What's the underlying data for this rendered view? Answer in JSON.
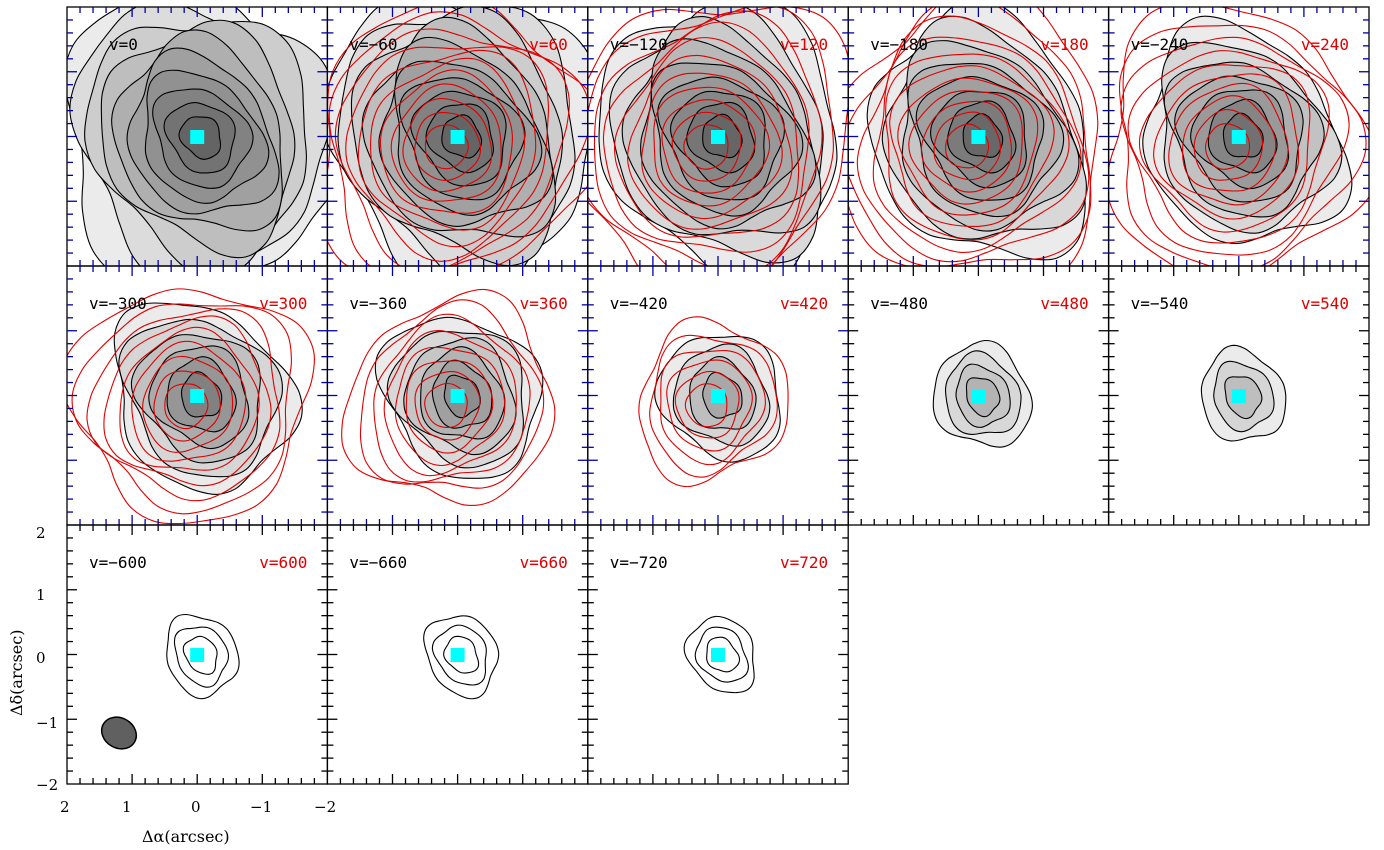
{
  "colors": {
    "frame": "#000000",
    "frame_blue": "#0000aa",
    "blue_contour": "#e00000",
    "red_label": "#e00000",
    "marker": "#00ffff",
    "beam": "#606060"
  },
  "axes": {
    "xlabel": "Δα(arcsec)",
    "ylabel": "Δδ(arcsec)",
    "xticks": [
      "2",
      "1",
      "0",
      "−1",
      "−2"
    ],
    "yticks": [
      "2",
      "1",
      "0",
      "−1",
      "−2"
    ]
  },
  "panels": [
    {
      "black_label": "v=0",
      "red_label": "",
      "emission": 1.0,
      "red_emission": 0.0,
      "blue_frame": true
    },
    {
      "black_label": "v=−60",
      "red_label": "v=60",
      "emission": 0.95,
      "red_emission": 0.95,
      "blue_frame": true
    },
    {
      "black_label": "v=−120",
      "red_label": "v=120",
      "emission": 0.85,
      "red_emission": 1.0,
      "blue_frame": true
    },
    {
      "black_label": "v=−180",
      "red_label": "v=180",
      "emission": 0.75,
      "red_emission": 0.95,
      "blue_frame": true
    },
    {
      "black_label": "v=−240",
      "red_label": "v=240",
      "emission": 0.65,
      "red_emission": 0.9,
      "blue_frame": true
    },
    {
      "black_label": "v=−300",
      "red_label": "v=300",
      "emission": 0.55,
      "red_emission": 0.75,
      "blue_frame": true
    },
    {
      "black_label": "v=−360",
      "red_label": "v=360",
      "emission": 0.45,
      "red_emission": 0.6,
      "blue_frame": true
    },
    {
      "black_label": "v=−420",
      "red_label": "v=420",
      "emission": 0.3,
      "red_emission": 0.35,
      "blue_frame": true
    },
    {
      "black_label": "v=−480",
      "red_label": "v=480",
      "emission": 0.2,
      "red_emission": 0.0,
      "blue_frame": false
    },
    {
      "black_label": "v=−540",
      "red_label": "v=540",
      "emission": 0.15,
      "red_emission": 0.0,
      "blue_frame": false
    },
    {
      "black_label": "v=−600",
      "red_label": "v=600",
      "emission": 0.1,
      "red_emission": 0.0,
      "blue_frame": false
    },
    {
      "black_label": "v=−660",
      "red_label": "v=660",
      "emission": 0.1,
      "red_emission": 0.0,
      "blue_frame": false
    },
    {
      "black_label": "v=−720",
      "red_label": "v=720",
      "emission": 0.08,
      "red_emission": 0.0,
      "blue_frame": false
    }
  ]
}
